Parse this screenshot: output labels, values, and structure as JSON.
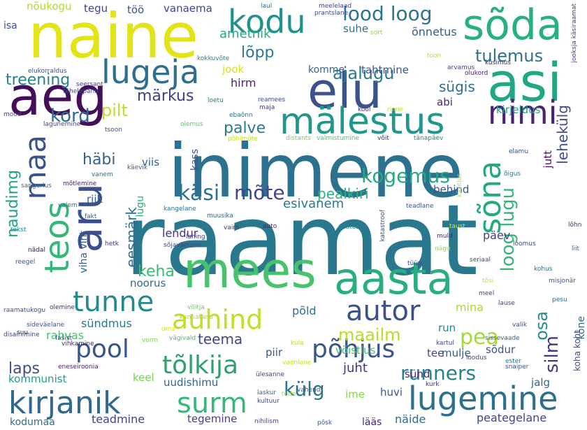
{
  "words": [
    {
      "text": "raamat",
      "color": "#2a788e"
    },
    {
      "text": "inimene",
      "color": "#2c728e"
    },
    {
      "text": "naine",
      "color": "#e2e418"
    },
    {
      "text": "aeg",
      "color": "#440f58"
    },
    {
      "text": "asi",
      "color": "#22a785"
    },
    {
      "text": "elu",
      "color": "#3b528b"
    },
    {
      "text": "mees",
      "color": "#4ac16d"
    },
    {
      "text": "aasta",
      "color": "#29af7f"
    },
    {
      "text": "sõda",
      "color": "#2ab07f"
    },
    {
      "text": "aru",
      "color": "#3c4f8a"
    },
    {
      "text": "mälestus",
      "color": "#1f988b"
    },
    {
      "text": "lugeja",
      "color": "#2e6f8e"
    },
    {
      "text": "kodu",
      "color": "#20928c"
    },
    {
      "text": "nimi",
      "color": "#482374"
    },
    {
      "text": "kirjanik",
      "color": "#31688e"
    },
    {
      "text": "lugemine",
      "color": "#2d708e"
    },
    {
      "text": "autor",
      "color": "#3b518b"
    },
    {
      "text": "auhind",
      "color": "#c2df23"
    },
    {
      "text": "surm",
      "color": "#37b878"
    },
    {
      "text": "tunne",
      "color": "#238a8d"
    },
    {
      "text": "teos",
      "color": "#35b779"
    },
    {
      "text": "sõna",
      "color": "#24aa83"
    },
    {
      "text": "maa",
      "color": "#3b528b"
    },
    {
      "text": "lood loog",
      "color": "#2c738e"
    },
    {
      "text": "tõlkija",
      "color": "#2ea16f"
    },
    {
      "text": "põhjus",
      "color": "#3a548c"
    },
    {
      "text": "pool",
      "color": "#39568c"
    },
    {
      "text": "kogemus",
      "color": "#23a983"
    },
    {
      "text": "runners",
      "color": "#26818e"
    },
    {
      "text": "pea",
      "color": "#a5db36"
    },
    {
      "text": "käsi",
      "color": "#2c728e"
    },
    {
      "text": "mõte",
      "color": "#3f4788"
    },
    {
      "text": "külg",
      "color": "#2b748e"
    },
    {
      "text": "tulemus",
      "color": "#2c728e"
    },
    {
      "text": "ajalugu",
      "color": "#297a8e"
    },
    {
      "text": "loog lugu",
      "color": "#35b779"
    },
    {
      "text": "silm",
      "color": "#453781"
    },
    {
      "text": "osa",
      "color": "#228c8d"
    },
    {
      "text": "maailm",
      "color": "#b5de2b"
    },
    {
      "text": "lõpp",
      "color": "#2a788e"
    },
    {
      "text": "pilt",
      "color": "#bddf26"
    },
    {
      "text": "kord",
      "color": "#306a8e"
    },
    {
      "text": "märkus",
      "color": "#424086"
    },
    {
      "text": "palve",
      "color": "#2a788e"
    },
    {
      "text": "treening",
      "color": "#26828e"
    },
    {
      "text": "naudimg",
      "color": "#1fa187"
    },
    {
      "text": "häbi",
      "color": "#33638d"
    },
    {
      "text": "sügis",
      "color": "#2d708e"
    },
    {
      "text": "lehekülg",
      "color": "#3e4c8a"
    },
    {
      "text": "eesmärk",
      "color": "#2e6e8e"
    },
    {
      "text": "keha",
      "color": "#3aba76"
    },
    {
      "text": "teema",
      "color": "#3f4788"
    },
    {
      "text": "laps",
      "color": "#3d4e8a"
    },
    {
      "text": "pealkiri",
      "color": "#2db27d"
    },
    {
      "text": "esivanem",
      "color": "#2a788e"
    },
    {
      "text": "ametnik",
      "color": "#23a983"
    },
    {
      "text": "nõukogu",
      "color": "#addc30"
    },
    {
      "text": "tegu",
      "color": "#414487"
    },
    {
      "text": "töö",
      "color": "#39558c"
    },
    {
      "text": "vanaema",
      "color": "#3f4889"
    },
    {
      "text": "isa",
      "color": "#3b528b"
    },
    {
      "text": "suhe",
      "color": "#2d708e"
    },
    {
      "text": "õnnetus",
      "color": "#355f8d"
    },
    {
      "text": "hirm",
      "color": "#482475"
    },
    {
      "text": "jook",
      "color": "#d2e21b"
    },
    {
      "text": "komme",
      "color": "#33638d"
    },
    {
      "text": "tahtmine",
      "color": "#3b528b"
    },
    {
      "text": "abi",
      "color": "#482878"
    },
    {
      "text": "kirjeldus",
      "color": "#1fa088"
    },
    {
      "text": "jutt",
      "color": "#471063"
    },
    {
      "text": "viis",
      "color": "#34618d"
    },
    {
      "text": "lugu",
      "color": "#29af7f"
    },
    {
      "text": "kass",
      "color": "#3d4d8a"
    },
    {
      "text": "behind",
      "color": "#3b528b"
    },
    {
      "text": "riik",
      "color": "#355f8d"
    },
    {
      "text": "lendur",
      "color": "#46327e"
    },
    {
      "text": "noorus",
      "color": "#31688e"
    },
    {
      "text": "päev",
      "color": "#433e85"
    },
    {
      "text": "mina",
      "color": "#a8db34"
    },
    {
      "text": "põld",
      "color": "#2e6e8e"
    },
    {
      "text": "sündmus",
      "color": "#2a788e"
    },
    {
      "text": "rahvas",
      "color": "#4ac16d"
    },
    {
      "text": "kommunist",
      "color": "#1f9e89"
    },
    {
      "text": "keel",
      "color": "#7ad151"
    },
    {
      "text": "uudishimu",
      "color": "#32648e"
    },
    {
      "text": "piir",
      "color": "#3a548c"
    },
    {
      "text": "run",
      "color": "#26828e"
    },
    {
      "text": "võistlus",
      "color": "#46c06f"
    },
    {
      "text": "tee",
      "color": "#414487"
    },
    {
      "text": "mulje",
      "color": "#38598c"
    },
    {
      "text": "sõdur",
      "color": "#3b528b"
    },
    {
      "text": "sünd",
      "color": "#472d7b"
    },
    {
      "text": "ime",
      "color": "#8bd646"
    },
    {
      "text": "huvi",
      "color": "#365c8d"
    },
    {
      "text": "juht",
      "color": "#46337f"
    },
    {
      "text": "jalg",
      "color": "#31688e"
    },
    {
      "text": "teadmine",
      "color": "#404688"
    },
    {
      "text": "tegemine",
      "color": "#433e85"
    },
    {
      "text": "kodumaa",
      "color": "#2d708e"
    },
    {
      "text": "lääs",
      "color": "#482878"
    },
    {
      "text": "näide",
      "color": "#2f6c8e"
    },
    {
      "text": "peategelane",
      "color": "#3e4989"
    },
    {
      "text": "viha viht",
      "color": "#38598c"
    },
    {
      "text": "vaim",
      "color": "#443a83"
    },
    {
      "text": "fakt",
      "color": "#33638d"
    },
    {
      "text": "tekst",
      "color": "#25848e"
    },
    {
      "text": "auto",
      "color": "#482475"
    },
    {
      "text": "üllatus",
      "color": "#27808e"
    },
    {
      "text": "kangelane",
      "color": "#2e6e8e"
    },
    {
      "text": "muusika",
      "color": "#31688e"
    },
    {
      "text": "lahing",
      "color": "#414487"
    },
    {
      "text": "sõjaväelane",
      "color": "#3e4989"
    },
    {
      "text": "hetk",
      "color": "#453882"
    },
    {
      "text": "nädal",
      "color": "#46085c"
    },
    {
      "text": "reegel",
      "color": "#3b528b"
    },
    {
      "text": "valem",
      "color": "#2a788e"
    },
    {
      "text": "mõtlemine",
      "color": "#482475"
    },
    {
      "text": "sangarlus",
      "color": "#31688e"
    },
    {
      "text": "vanem",
      "color": "#2c728e"
    },
    {
      "text": "käevik",
      "color": "#32648e"
    },
    {
      "text": "tsoon",
      "color": "#3b528b"
    },
    {
      "text": "mood",
      "color": "#414487"
    },
    {
      "text": "lagunemine",
      "color": "#3e4989"
    },
    {
      "text": "tähelepanu",
      "color": "#3f4788"
    },
    {
      "text": "seersant",
      "color": "#443983"
    },
    {
      "text": "elukorraldus",
      "color": "#3b528b"
    },
    {
      "text": "kokkuvõte",
      "color": "#26828e"
    },
    {
      "text": "laul",
      "color": "#2c728e"
    },
    {
      "text": "meelelaad",
      "color": "#414487"
    },
    {
      "text": "prantslane",
      "color": "#3e4989"
    },
    {
      "text": "sort",
      "color": "#8fd744"
    },
    {
      "text": "toon",
      "color": "#bddf26"
    },
    {
      "text": "arvamus",
      "color": "#414487"
    },
    {
      "text": "küsimus",
      "color": "#482576"
    },
    {
      "text": "olukord",
      "color": "#482475"
    },
    {
      "text": "jooksja käsiraamat",
      "color": "#3e4989"
    },
    {
      "text": "reamees",
      "color": "#3b528b"
    },
    {
      "text": "maja",
      "color": "#443983"
    },
    {
      "text": "kool",
      "color": "#472d7b"
    },
    {
      "text": "rinne",
      "color": "#bddf26"
    },
    {
      "text": "ebaõnn",
      "color": "#2c728e"
    },
    {
      "text": "loetu",
      "color": "#2a788e"
    },
    {
      "text": "olemus",
      "color": "#5ec962"
    },
    {
      "text": "põhimõte",
      "color": "#c0df25"
    },
    {
      "text": "distants",
      "color": "#73d056"
    },
    {
      "text": "valmistumine",
      "color": "#4ec36b"
    },
    {
      "text": "võit",
      "color": "#482878"
    },
    {
      "text": "tänapäev",
      "color": "#26828e"
    },
    {
      "text": "elamu",
      "color": "#3b528b"
    },
    {
      "text": "õigus",
      "color": "#2a788e"
    },
    {
      "text": "käsitlus",
      "color": "#bddf26"
    },
    {
      "text": "teadlane",
      "color": "#3b528b"
    },
    {
      "text": "taust",
      "color": "#e5e419"
    },
    {
      "text": "lõhn",
      "color": "#482878"
    },
    {
      "text": "liit",
      "color": "#31688e"
    },
    {
      "text": "loomus",
      "color": "#3e4989"
    },
    {
      "text": "katastroof",
      "color": "#3b528b"
    },
    {
      "text": "muld",
      "color": "#482576"
    },
    {
      "text": "nägu",
      "color": "#9fda3a"
    },
    {
      "text": "seriaal",
      "color": "#3e4989"
    },
    {
      "text": "tüüp",
      "color": "#414487"
    },
    {
      "text": "kohus",
      "color": "#2d708e"
    },
    {
      "text": "misjonär",
      "color": "#3b528b"
    },
    {
      "text": "tõsi",
      "color": "#bddf26"
    },
    {
      "text": "meel",
      "color": "#3e4989"
    },
    {
      "text": "lause",
      "color": "#414487"
    },
    {
      "text": "pesu",
      "color": "#31688e"
    },
    {
      "text": "raamatukogu",
      "color": "#3b528b"
    },
    {
      "text": "olemine",
      "color": "#482878"
    },
    {
      "text": "võitja",
      "color": "#6ccd5a"
    },
    {
      "text": "kannatanu",
      "color": "#a8db34"
    },
    {
      "text": "suu",
      "color": "#482475"
    },
    {
      "text": "oma",
      "color": "#dde318"
    },
    {
      "text": "vägivald",
      "color": "#4ac16d"
    },
    {
      "text": "sideväelane",
      "color": "#3b528b"
    },
    {
      "text": "fašist",
      "color": "#414487"
    },
    {
      "text": "vorm",
      "color": "#73d056"
    },
    {
      "text": "disainimine",
      "color": "#3e4989"
    },
    {
      "text": "vihkamine",
      "color": "#482475"
    },
    {
      "text": "küla",
      "color": "#b5de2b"
    },
    {
      "text": "vaenlane",
      "color": "#c8e020"
    },
    {
      "text": "kartul",
      "color": "#3e4989"
    },
    {
      "text": "valik",
      "color": "#3b528b"
    },
    {
      "text": "sissevaade",
      "color": "#31688e"
    },
    {
      "text": "ester",
      "color": "#2c728e"
    },
    {
      "text": "loodus",
      "color": "#3e4989"
    },
    {
      "text": "snaiper",
      "color": "#3b528b"
    },
    {
      "text": "kõne",
      "color": "#31688e"
    },
    {
      "text": "koha koht",
      "color": "#3e4989"
    },
    {
      "text": "eneseiroonia",
      "color": "#482475"
    },
    {
      "text": "ülesanne",
      "color": "#414487"
    },
    {
      "text": "kultuur",
      "color": "#3e4989"
    },
    {
      "text": "laskur",
      "color": "#31688e"
    },
    {
      "text": "tõde",
      "color": "#a5db36"
    },
    {
      "text": "vahend",
      "color": "#3b528b"
    },
    {
      "text": "kurk",
      "color": "#482878"
    },
    {
      "text": "nihilism",
      "color": "#414487"
    },
    {
      "text": "põsk",
      "color": "#3b528b"
    }
  ]
}
